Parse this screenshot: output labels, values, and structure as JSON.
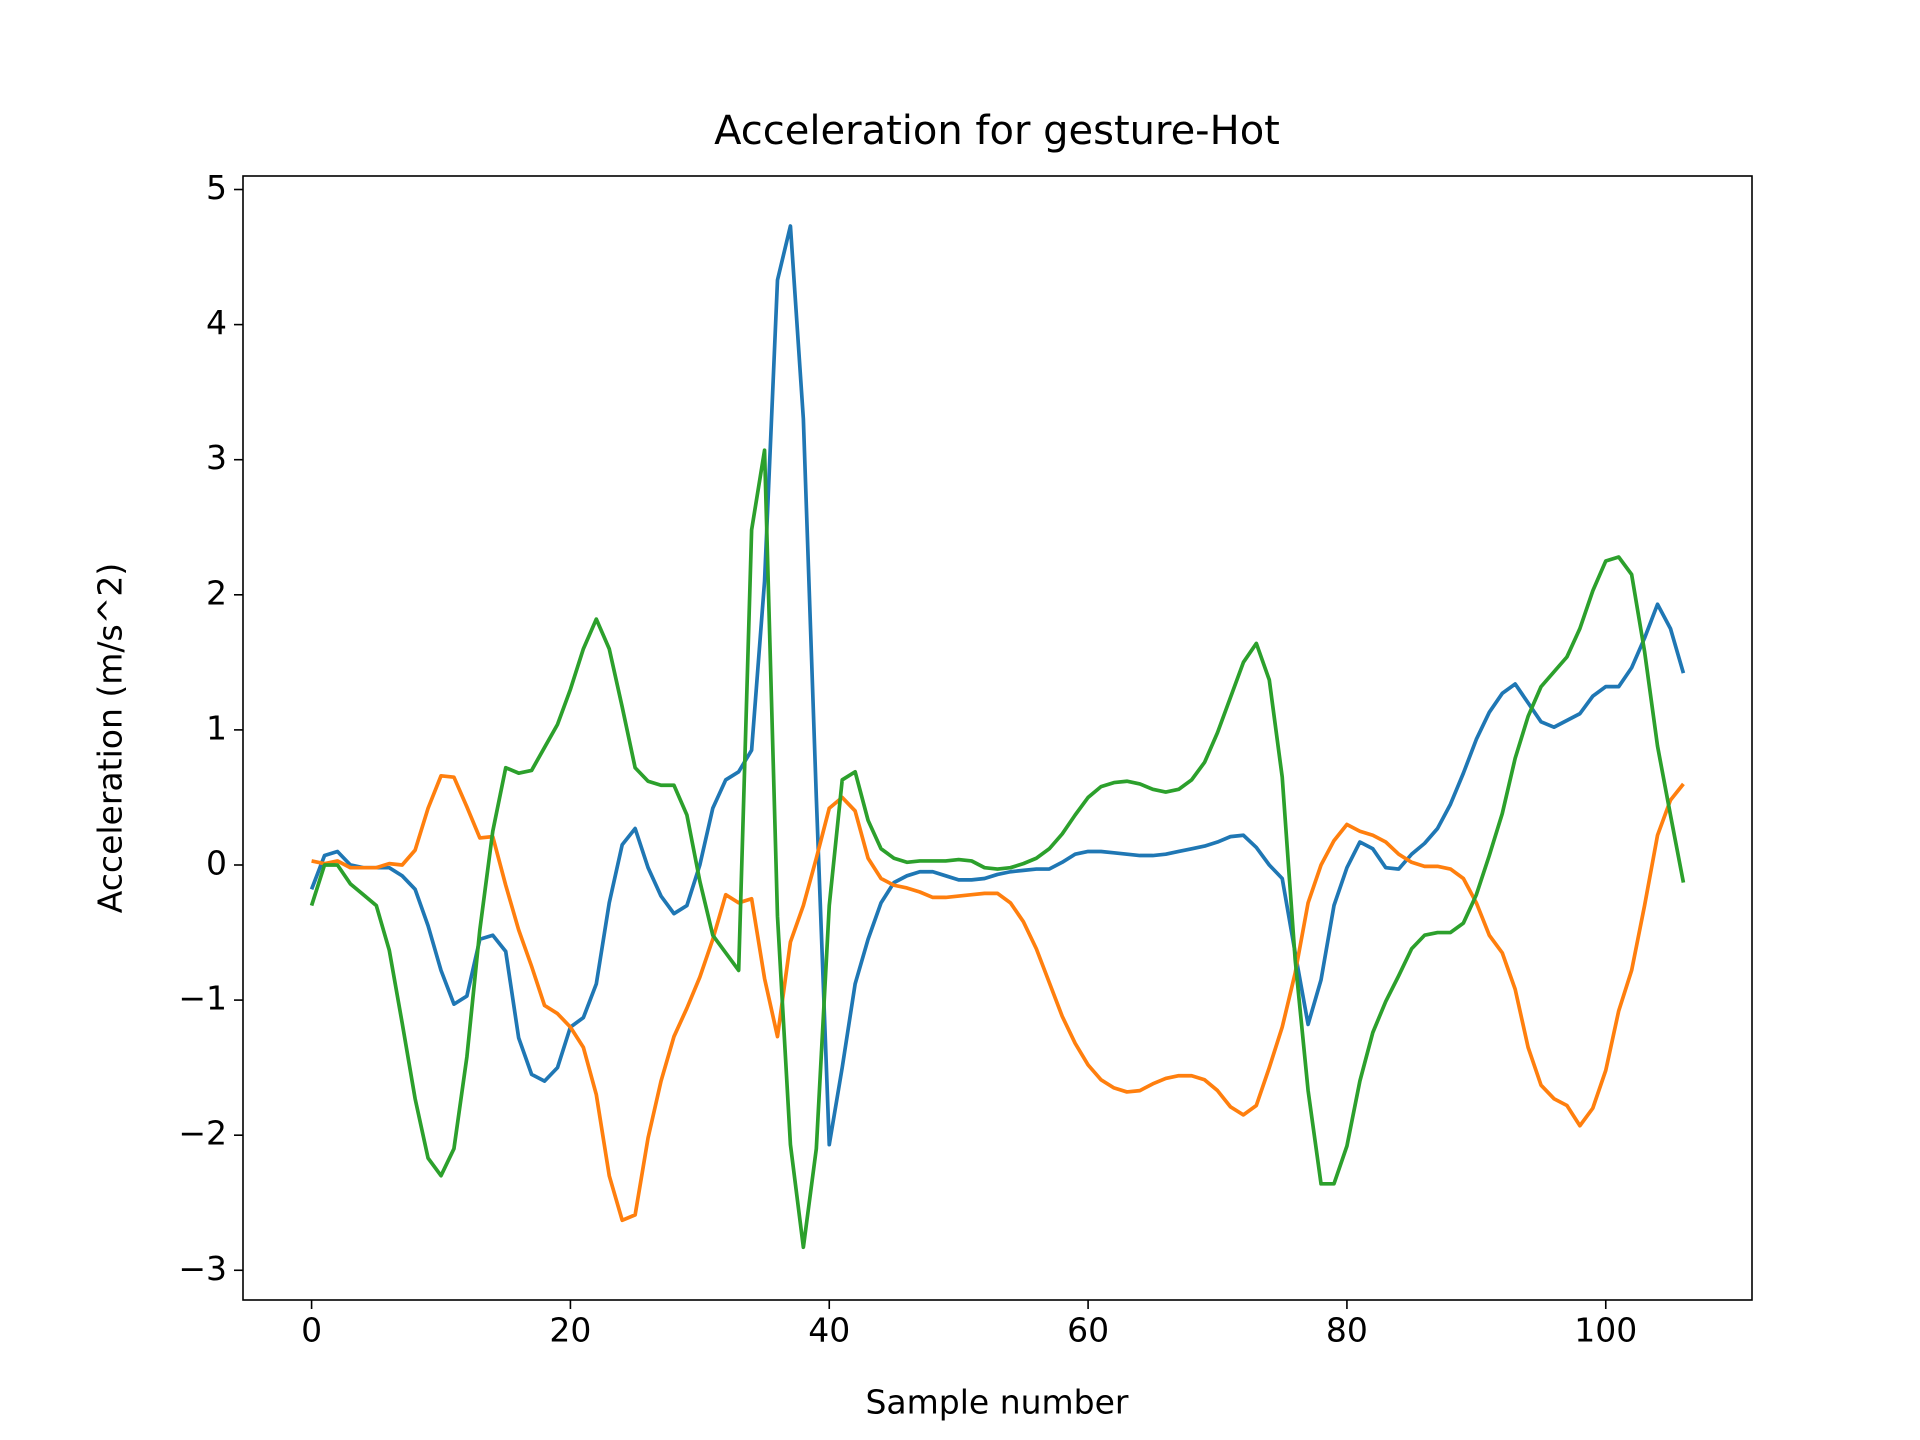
{
  "chart_data": {
    "type": "line",
    "title": "Acceleration for gesture-Hot",
    "x_label": "Sample number",
    "y_label": "Acceleration (m/s^2)",
    "x": [
      0,
      1,
      2,
      3,
      4,
      5,
      6,
      7,
      8,
      9,
      10,
      11,
      12,
      13,
      14,
      15,
      16,
      17,
      18,
      19,
      20,
      21,
      22,
      23,
      24,
      25,
      26,
      27,
      28,
      29,
      30,
      31,
      32,
      33,
      34,
      35,
      36,
      37,
      38,
      39,
      40,
      41,
      42,
      43,
      44,
      45,
      46,
      47,
      48,
      49,
      50,
      51,
      52,
      53,
      54,
      55,
      56,
      57,
      58,
      59,
      60,
      61,
      62,
      63,
      64,
      65,
      66,
      67,
      68,
      69,
      70,
      71,
      72,
      73,
      74,
      75,
      76,
      77,
      78,
      79,
      80,
      81,
      82,
      83,
      84,
      85,
      86,
      87,
      88,
      89,
      90,
      91,
      92,
      93,
      94,
      95,
      96,
      97,
      98,
      99,
      100,
      101,
      102,
      103,
      104,
      105,
      106
    ],
    "series": [
      {
        "color": "#1f77b4",
        "values": [
          -0.18,
          0.07,
          0.1,
          0.0,
          -0.02,
          -0.02,
          -0.02,
          -0.08,
          -0.18,
          -0.45,
          -0.78,
          -1.03,
          -0.97,
          -0.55,
          -0.52,
          -0.64,
          -1.28,
          -1.55,
          -1.6,
          -1.5,
          -1.2,
          -1.13,
          -0.88,
          -0.28,
          0.15,
          0.27,
          -0.02,
          -0.23,
          -0.36,
          -0.3,
          0.0,
          0.42,
          0.63,
          0.69,
          0.85,
          2.1,
          4.33,
          4.73,
          3.3,
          0.5,
          -2.07,
          -1.5,
          -0.88,
          -0.55,
          -0.28,
          -0.13,
          -0.08,
          -0.05,
          -0.05,
          -0.08,
          -0.11,
          -0.11,
          -0.1,
          -0.07,
          -0.05,
          -0.04,
          -0.03,
          -0.03,
          0.02,
          0.08,
          0.1,
          0.1,
          0.09,
          0.08,
          0.07,
          0.07,
          0.08,
          0.1,
          0.12,
          0.14,
          0.17,
          0.21,
          0.22,
          0.13,
          0.0,
          -0.1,
          -0.65,
          -1.18,
          -0.85,
          -0.3,
          -0.02,
          0.17,
          0.12,
          -0.02,
          -0.03,
          0.08,
          0.16,
          0.27,
          0.45,
          0.68,
          0.93,
          1.13,
          1.27,
          1.34,
          1.2,
          1.06,
          1.02,
          1.07,
          1.12,
          1.25,
          1.32,
          1.32,
          1.46,
          1.68,
          1.93,
          1.75,
          1.42
        ]
      },
      {
        "color": "#ff7f0e",
        "values": [
          0.03,
          0.01,
          0.03,
          -0.02,
          -0.02,
          -0.02,
          0.01,
          0.0,
          0.11,
          0.42,
          0.66,
          0.65,
          0.43,
          0.2,
          0.21,
          -0.15,
          -0.48,
          -0.75,
          -1.04,
          -1.1,
          -1.2,
          -1.35,
          -1.7,
          -2.3,
          -2.63,
          -2.59,
          -2.02,
          -1.6,
          -1.27,
          -1.06,
          -0.83,
          -0.55,
          -0.22,
          -0.28,
          -0.25,
          -0.84,
          -1.27,
          -0.57,
          -0.3,
          0.05,
          0.42,
          0.5,
          0.4,
          0.05,
          -0.1,
          -0.15,
          -0.17,
          -0.2,
          -0.24,
          -0.24,
          -0.23,
          -0.22,
          -0.21,
          -0.21,
          -0.28,
          -0.42,
          -0.62,
          -0.87,
          -1.12,
          -1.32,
          -1.48,
          -1.59,
          -1.65,
          -1.68,
          -1.67,
          -1.62,
          -1.58,
          -1.56,
          -1.56,
          -1.59,
          -1.67,
          -1.79,
          -1.85,
          -1.78,
          -1.5,
          -1.2,
          -0.8,
          -0.28,
          0.0,
          0.18,
          0.3,
          0.25,
          0.22,
          0.17,
          0.08,
          0.02,
          -0.01,
          -0.01,
          -0.03,
          -0.1,
          -0.28,
          -0.52,
          -0.65,
          -0.92,
          -1.35,
          -1.63,
          -1.73,
          -1.78,
          -1.93,
          -1.8,
          -1.52,
          -1.08,
          -0.78,
          -0.3,
          0.22,
          0.48,
          0.6
        ]
      },
      {
        "color": "#2ca02c",
        "values": [
          -0.3,
          0.0,
          0.0,
          -0.14,
          -0.22,
          -0.3,
          -0.63,
          -1.17,
          -1.73,
          -2.17,
          -2.3,
          -2.1,
          -1.42,
          -0.48,
          0.25,
          0.72,
          0.68,
          0.7,
          0.87,
          1.04,
          1.3,
          1.6,
          1.82,
          1.6,
          1.17,
          0.72,
          0.62,
          0.59,
          0.59,
          0.37,
          -0.12,
          -0.52,
          -0.65,
          -0.78,
          2.48,
          3.07,
          -0.38,
          -2.07,
          -2.83,
          -2.1,
          -0.3,
          0.63,
          0.69,
          0.33,
          0.12,
          0.05,
          0.02,
          0.03,
          0.03,
          0.03,
          0.04,
          0.03,
          -0.02,
          -0.03,
          -0.02,
          0.01,
          0.05,
          0.12,
          0.23,
          0.37,
          0.5,
          0.58,
          0.61,
          0.62,
          0.6,
          0.56,
          0.54,
          0.56,
          0.63,
          0.76,
          0.98,
          1.24,
          1.5,
          1.64,
          1.37,
          0.65,
          -0.7,
          -1.67,
          -2.36,
          -2.36,
          -2.08,
          -1.6,
          -1.24,
          -1.01,
          -0.82,
          -0.62,
          -0.52,
          -0.5,
          -0.5,
          -0.43,
          -0.22,
          0.07,
          0.38,
          0.79,
          1.1,
          1.32,
          1.43,
          1.54,
          1.75,
          2.03,
          2.25,
          2.28,
          2.15,
          1.58,
          0.88,
          0.37,
          -0.13
        ]
      }
    ],
    "xlim": [
      -5.3,
      111.3
    ],
    "xticks": [
      0,
      20,
      40,
      60,
      80,
      100
    ],
    "ylim": [
      -3.22,
      5.1
    ],
    "yticks": [
      {
        "value": -3,
        "label": "−3"
      },
      {
        "value": -2,
        "label": "−2"
      },
      {
        "value": -1,
        "label": "−1"
      },
      0,
      1,
      2,
      3,
      4,
      5
    ],
    "grid": false
  }
}
